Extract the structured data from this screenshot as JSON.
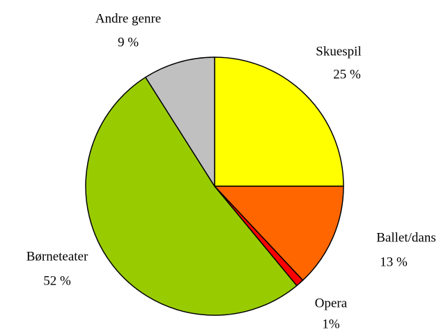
{
  "chart_data": {
    "type": "pie",
    "categories": [
      "Skuespil",
      "Ballet/dans",
      "Opera",
      "Børneteater",
      "Andre genre"
    ],
    "values": [
      25,
      13,
      1,
      52,
      9
    ],
    "value_labels": [
      "25 %",
      "13 %",
      "1%",
      "52 %",
      "9 %"
    ],
    "colors": [
      "#ffff00",
      "#ff6600",
      "#ff0000",
      "#99cc00",
      "#c0c0c0"
    ]
  }
}
